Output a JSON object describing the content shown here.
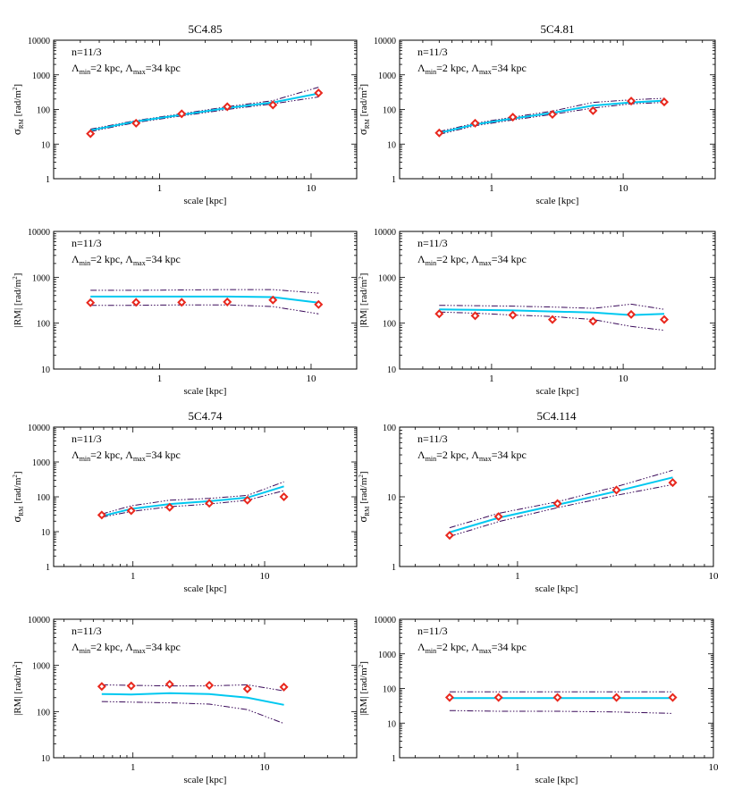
{
  "common": {
    "xlabel": "scale [kpc]",
    "annotation": {
      "line1": "n=11/3",
      "line2_a": "Λ",
      "line2_a_sub": "min",
      "line2_b": "=2 kpc, Λ",
      "line2_b_sub": "max",
      "line2_c": "=34 kpc"
    },
    "sigma_ylabel": {
      "main": "σ",
      "sub": "RM",
      "unit": " [rad/m",
      "sup": "2",
      "close": "]"
    },
    "rm_ylabel": {
      "main": "|RM| [rad/m",
      "sup": "2",
      "close": "]"
    },
    "colors": {
      "model_mean": "#00c8f0",
      "model_bounds": "#3a0a5a",
      "observed_marker": "#e8281e",
      "observed_marker_fill": "#ffffff"
    },
    "legend_placement": "top-left",
    "grid": false
  },
  "chart_data": [
    {
      "type": "line",
      "title": "5C4.85",
      "ylabel_kind": "sigma",
      "xscale": "log",
      "yscale": "log",
      "xlim": [
        0.2,
        20
      ],
      "ylim": [
        1,
        10000
      ],
      "xticks": [
        "1",
        "10"
      ],
      "yticks": [
        "1",
        "10",
        "100",
        "1000",
        "10000"
      ],
      "x": [
        0.35,
        0.7,
        1.4,
        2.8,
        5.6,
        11.2
      ],
      "series": [
        {
          "role": "observed",
          "values": [
            20,
            40,
            75,
            120,
            135,
            300
          ]
        },
        {
          "role": "model-mean",
          "values": [
            25,
            45,
            70,
            110,
            160,
            290
          ]
        },
        {
          "role": "model-upper",
          "values": [
            27,
            48,
            75,
            120,
            180,
            440
          ]
        },
        {
          "role": "model-lower",
          "values": [
            23,
            42,
            65,
            100,
            145,
            230
          ]
        }
      ]
    },
    {
      "type": "line",
      "title": "5C4.81",
      "ylabel_kind": "sigma",
      "xscale": "log",
      "yscale": "log",
      "xlim": [
        0.2,
        50
      ],
      "ylim": [
        1,
        10000
      ],
      "xticks": [
        "1",
        "10"
      ],
      "yticks": [
        "1",
        "10",
        "100",
        "1000",
        "10000"
      ],
      "x": [
        0.4,
        0.75,
        1.45,
        2.9,
        5.9,
        11.5,
        20.5
      ],
      "series": [
        {
          "role": "observed",
          "values": [
            21,
            40,
            60,
            72,
            92,
            175,
            165
          ]
        },
        {
          "role": "model-mean",
          "values": [
            21,
            37,
            55,
            80,
            130,
            160,
            180
          ]
        },
        {
          "role": "model-upper",
          "values": [
            23,
            40,
            60,
            90,
            160,
            190,
            210
          ]
        },
        {
          "role": "model-lower",
          "values": [
            19,
            34,
            50,
            72,
            110,
            145,
            160
          ]
        }
      ]
    },
    {
      "type": "line",
      "title": "",
      "ylabel_kind": "rm",
      "xscale": "log",
      "yscale": "log",
      "xlim": [
        0.2,
        20
      ],
      "ylim": [
        10,
        10000
      ],
      "xticks": [
        "1",
        "10"
      ],
      "yticks": [
        "10",
        "100",
        "1000",
        "10000"
      ],
      "x": [
        0.35,
        0.7,
        1.4,
        2.8,
        5.6,
        11.2
      ],
      "series": [
        {
          "role": "observed",
          "values": [
            280,
            285,
            285,
            290,
            320,
            255
          ]
        },
        {
          "role": "model-mean",
          "values": [
            380,
            380,
            380,
            380,
            370,
            280
          ]
        },
        {
          "role": "model-upper",
          "values": [
            520,
            520,
            530,
            540,
            540,
            450
          ]
        },
        {
          "role": "model-lower",
          "values": [
            245,
            245,
            250,
            250,
            230,
            160
          ]
        }
      ]
    },
    {
      "type": "line",
      "title": "",
      "ylabel_kind": "rm",
      "xscale": "log",
      "yscale": "log",
      "xlim": [
        0.2,
        50
      ],
      "ylim": [
        10,
        10000
      ],
      "xticks": [
        "1",
        "10"
      ],
      "yticks": [
        "10",
        "100",
        "1000",
        "10000"
      ],
      "x": [
        0.4,
        0.75,
        1.45,
        2.9,
        5.9,
        11.5,
        20.5
      ],
      "series": [
        {
          "role": "observed",
          "values": [
            160,
            145,
            150,
            120,
            110,
            155,
            120
          ]
        },
        {
          "role": "model-mean",
          "values": [
            200,
            195,
            190,
            180,
            170,
            150,
            160
          ]
        },
        {
          "role": "model-upper",
          "values": [
            245,
            240,
            235,
            225,
            210,
            260,
            200
          ]
        },
        {
          "role": "model-lower",
          "values": [
            175,
            165,
            150,
            140,
            120,
            85,
            70
          ]
        }
      ]
    },
    {
      "type": "line",
      "title": "5C4.74",
      "ylabel_kind": "sigma",
      "xscale": "log",
      "yscale": "log",
      "xlim": [
        0.25,
        50
      ],
      "ylim": [
        1,
        10000
      ],
      "xticks": [
        "1",
        "10"
      ],
      "yticks": [
        "1",
        "10",
        "100",
        "1000",
        "10000"
      ],
      "x": [
        0.58,
        0.97,
        1.9,
        3.8,
        7.4,
        14
      ],
      "series": [
        {
          "role": "observed",
          "values": [
            30,
            40,
            50,
            65,
            80,
            100
          ]
        },
        {
          "role": "model-mean",
          "values": [
            28,
            45,
            62,
            75,
            95,
            200
          ]
        },
        {
          "role": "model-upper",
          "values": [
            32,
            55,
            80,
            90,
            110,
            270
          ]
        },
        {
          "role": "model-lower",
          "values": [
            26,
            38,
            52,
            62,
            80,
            150
          ]
        }
      ]
    },
    {
      "type": "line",
      "title": "5C4.114",
      "ylabel_kind": "sigma",
      "xscale": "log",
      "yscale": "log",
      "xlim": [
        0.25,
        10
      ],
      "ylim": [
        1,
        100
      ],
      "xticks": [
        "1",
        "10"
      ],
      "yticks": [
        "1",
        "10",
        "100"
      ],
      "x": [
        0.45,
        0.8,
        1.6,
        3.2,
        6.2
      ],
      "series": [
        {
          "role": "observed",
          "values": [
            2.8,
            5.2,
            8.0,
            12.5,
            16
          ]
        },
        {
          "role": "model-mean",
          "values": [
            3.1,
            5.0,
            7.7,
            12.0,
            19
          ]
        },
        {
          "role": "model-upper",
          "values": [
            3.6,
            5.8,
            8.5,
            14.0,
            24
          ]
        },
        {
          "role": "model-lower",
          "values": [
            2.7,
            4.4,
            7.0,
            10.5,
            15
          ]
        }
      ]
    },
    {
      "type": "line",
      "title": "",
      "ylabel_kind": "rm",
      "xscale": "log",
      "yscale": "log",
      "xlim": [
        0.25,
        50
      ],
      "ylim": [
        10,
        10000
      ],
      "xticks": [
        "1",
        "10"
      ],
      "yticks": [
        "10",
        "100",
        "1000",
        "10000"
      ],
      "x": [
        0.58,
        0.97,
        1.9,
        3.8,
        7.4,
        14
      ],
      "series": [
        {
          "role": "observed",
          "values": [
            350,
            360,
            390,
            370,
            310,
            340
          ]
        },
        {
          "role": "model-mean",
          "values": [
            240,
            235,
            250,
            240,
            200,
            140
          ]
        },
        {
          "role": "model-upper",
          "values": [
            380,
            370,
            360,
            360,
            380,
            280
          ]
        },
        {
          "role": "model-lower",
          "values": [
            165,
            160,
            155,
            145,
            110,
            55
          ]
        }
      ]
    },
    {
      "type": "line",
      "title": "",
      "ylabel_kind": "rm",
      "xscale": "log",
      "yscale": "log",
      "xlim": [
        0.25,
        10
      ],
      "ylim": [
        1,
        10000
      ],
      "xticks": [
        "1",
        "10"
      ],
      "yticks": [
        "1",
        "10",
        "100",
        "1000",
        "10000"
      ],
      "x": [
        0.45,
        0.8,
        1.6,
        3.2,
        6.2
      ],
      "series": [
        {
          "role": "observed",
          "values": [
            55,
            55,
            55,
            55,
            55
          ]
        },
        {
          "role": "model-mean",
          "values": [
            53,
            53,
            53,
            53,
            53
          ]
        },
        {
          "role": "model-upper",
          "values": [
            80,
            80,
            80,
            80,
            80
          ]
        },
        {
          "role": "model-lower",
          "values": [
            23,
            22,
            22,
            21,
            19
          ]
        }
      ]
    }
  ]
}
